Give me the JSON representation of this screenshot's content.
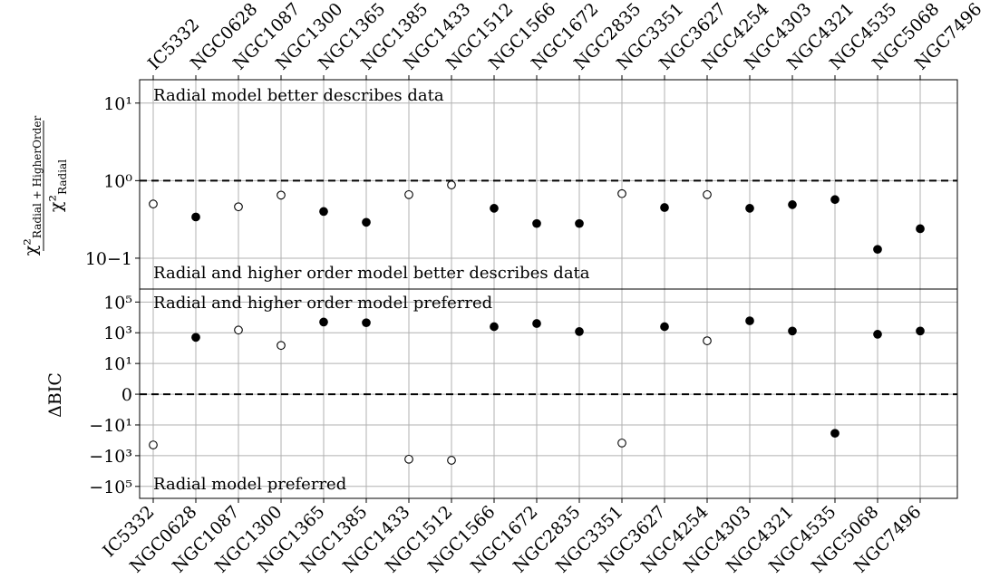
{
  "chart_data": [
    {
      "type": "scatter",
      "panel": "top",
      "categories": [
        "IC5332",
        "NGC0628",
        "NGC1087",
        "NGC1300",
        "NGC1365",
        "NGC1385",
        "NGC1433",
        "NGC1512",
        "NGC1566",
        "NGC1672",
        "NGC2835",
        "NGC3351",
        "NGC3627",
        "NGC4254",
        "NGC4303",
        "NGC4321",
        "NGC4535",
        "NGC5068",
        "NGC7496"
      ],
      "values": [
        0.5,
        0.34,
        0.46,
        0.65,
        0.4,
        0.29,
        0.66,
        0.88,
        0.44,
        0.28,
        0.28,
        0.68,
        0.45,
        0.66,
        0.44,
        0.49,
        0.57,
        0.13,
        0.24
      ],
      "filled": [
        false,
        true,
        false,
        false,
        true,
        true,
        false,
        false,
        true,
        true,
        true,
        false,
        true,
        false,
        true,
        true,
        true,
        true,
        true
      ],
      "yscale": "log",
      "ylim": [
        0.04,
        20
      ],
      "yticks": [
        0.1,
        1,
        10
      ],
      "yticklabels": [
        "10−1",
        "10⁰",
        "10¹"
      ],
      "reference_line": 1,
      "ylabel_numerator": "χ²",
      "ylabel_numerator_sub": "Radial + HigherOrder",
      "ylabel_denominator": "χ²",
      "ylabel_denominator_sub": "Radial",
      "annotation_top": "Radial model better describes data",
      "annotation_bottom": "Radial and higher order model better describes data",
      "grid": true
    },
    {
      "type": "scatter",
      "panel": "bottom",
      "categories": [
        "IC5332",
        "NGC0628",
        "NGC1087",
        "NGC1300",
        "NGC1365",
        "NGC1385",
        "NGC1433",
        "NGC1512",
        "NGC1566",
        "NGC1672",
        "NGC2835",
        "NGC3351",
        "NGC3627",
        "NGC4254",
        "NGC4303",
        "NGC4321",
        "NGC4535",
        "NGC5068",
        "NGC7496"
      ],
      "values": [
        -200,
        500,
        1500,
        150,
        5000,
        4500,
        -1700,
        -2000,
        2500,
        4000,
        1200,
        -150,
        2500,
        300,
        6000,
        1300,
        -35,
        800,
        1300
      ],
      "filled": [
        false,
        true,
        false,
        false,
        true,
        true,
        false,
        false,
        true,
        true,
        true,
        false,
        true,
        false,
        true,
        true,
        true,
        true,
        true
      ],
      "yscale": "symlog",
      "ylim": [
        -600000,
        700000
      ],
      "yticks": [
        -100000,
        -1000,
        -10,
        0,
        10,
        1000,
        100000
      ],
      "yticklabels": [
        "−10⁵",
        "−10³",
        "−10¹",
        "0",
        "10¹",
        "10³",
        "10⁵"
      ],
      "reference_line": 0,
      "ylabel": "ΔBIC",
      "annotation_top": "Radial and higher order model preferred",
      "annotation_bottom": "Radial model preferred",
      "grid": true
    }
  ]
}
